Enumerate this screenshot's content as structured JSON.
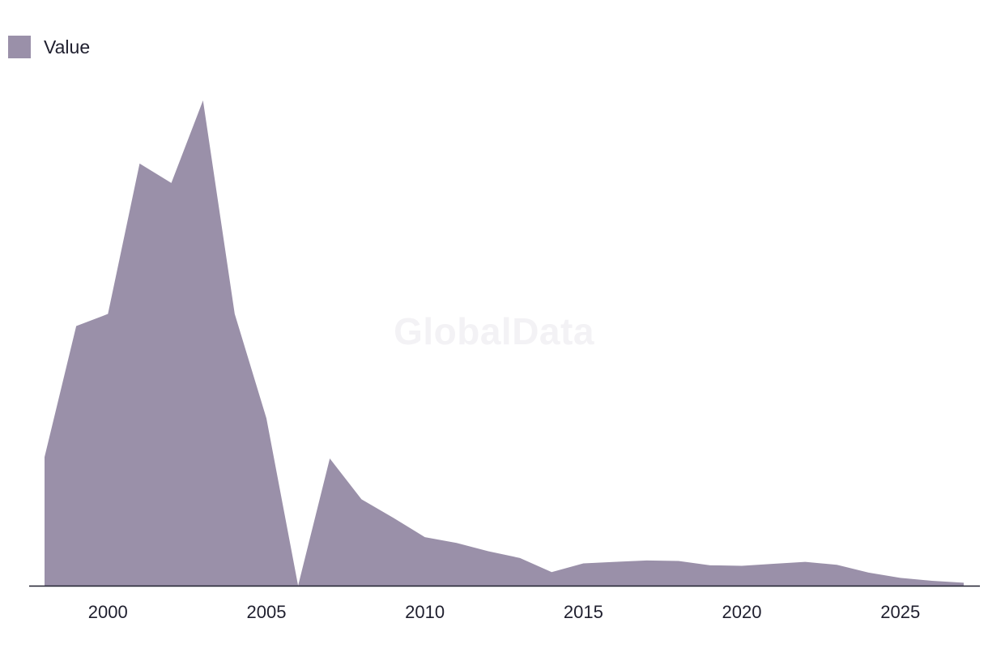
{
  "legend": {
    "label": "Value",
    "color": "#9a90a9"
  },
  "watermark": "GlobalData",
  "chart_data": {
    "type": "area",
    "series": [
      {
        "name": "Value",
        "color": "#9a90a9",
        "x": [
          1998,
          1999,
          2000,
          2001,
          2002,
          2003,
          2004,
          2005,
          2006,
          2007,
          2008,
          2009,
          2010,
          2011,
          2012,
          2013,
          2014,
          2015,
          2016,
          2017,
          2018,
          2019,
          2020,
          2021,
          2022,
          2023,
          2024,
          2025,
          2026,
          2027
        ],
        "values": [
          26.5,
          53.5,
          56,
          87,
          83,
          100,
          56,
          34.5,
          0,
          26.2,
          17.8,
          14,
          10,
          8.8,
          7.1,
          5.7,
          2.8,
          4.6,
          4.9,
          5.2,
          5.1,
          4.2,
          4.1,
          4.5,
          4.9,
          4.3,
          2.7,
          1.6,
          1,
          0.6
        ]
      }
    ],
    "xticks": [
      "2000",
      "2005",
      "2010",
      "2015",
      "2020",
      "2025"
    ],
    "xlim": [
      1997.5,
      2027.5
    ],
    "ylim": [
      0,
      100
    ],
    "xlabel": "",
    "ylabel": "",
    "grid": false,
    "legend_position": "top-left"
  }
}
